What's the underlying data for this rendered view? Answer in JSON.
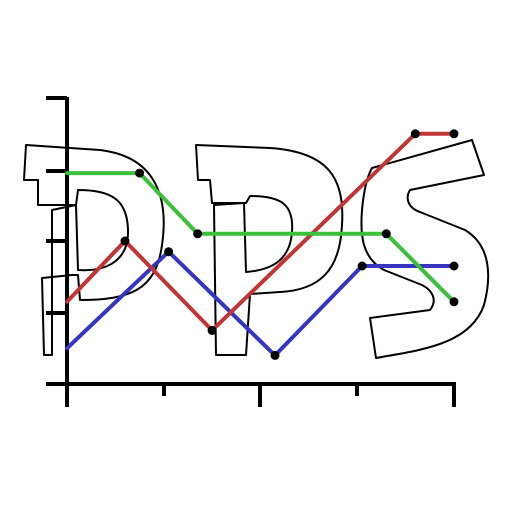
{
  "logo": {
    "text": "DPS"
  },
  "colors": {
    "axis": "#000000",
    "point": "#000000",
    "background": "#ffffff"
  },
  "chart_data": {
    "type": "line",
    "title": "",
    "xlabel": "",
    "ylabel": "",
    "xlim": [
      0,
      4
    ],
    "ylim": [
      0,
      4
    ],
    "xticks": [
      0,
      1,
      2,
      3,
      4
    ],
    "yticks": [
      1,
      2,
      3,
      4
    ],
    "grid": false,
    "legend": "none",
    "series": [
      {
        "color": "#3535c0",
        "x": [
          0,
          1.05,
          2.15,
          3.05,
          4.0
        ],
        "y": [
          0.5,
          1.85,
          0.4,
          1.65,
          1.65
        ]
      },
      {
        "color": "#c03535",
        "x": [
          0,
          0.6,
          1.5,
          3.6,
          4.0
        ],
        "y": [
          1.15,
          2.0,
          0.75,
          3.5,
          3.5
        ]
      },
      {
        "color": "#3ac03a",
        "x": [
          0,
          0.75,
          1.35,
          3.3,
          4.0
        ],
        "y": [
          2.95,
          2.95,
          2.1,
          2.1,
          1.15
        ]
      }
    ]
  }
}
